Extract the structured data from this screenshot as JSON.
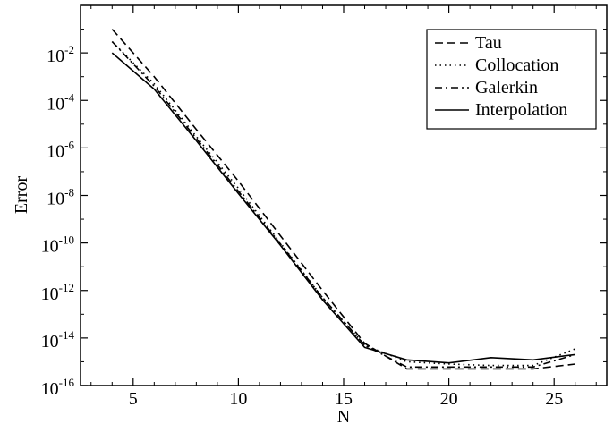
{
  "chart_data": {
    "type": "line",
    "xlabel": "N",
    "ylabel": "Error",
    "xlim": [
      2.5,
      27.5
    ],
    "ylim_log10": [
      -16,
      0
    ],
    "y_scale": "log",
    "grid": false,
    "legend_position": "top-right",
    "x_ticks": [
      5,
      10,
      15,
      20,
      25
    ],
    "x_tick_labels": [
      "5",
      "10",
      "15",
      "20",
      "25"
    ],
    "y_ticks": [
      {
        "base": "10",
        "exp": "-2",
        "value": 0.01
      },
      {
        "base": "10",
        "exp": "-4",
        "value": 0.0001
      },
      {
        "base": "10",
        "exp": "-6",
        "value": 1e-06
      },
      {
        "base": "10",
        "exp": "-8",
        "value": 1e-08
      },
      {
        "base": "10",
        "exp": "-10",
        "value": 1e-10
      },
      {
        "base": "10",
        "exp": "-12",
        "value": 1e-12
      },
      {
        "base": "10",
        "exp": "-14",
        "value": 1e-14
      },
      {
        "base": "10",
        "exp": "-16",
        "value": 1e-16
      }
    ],
    "x": [
      4,
      6,
      8,
      10,
      12,
      14,
      16,
      18,
      20,
      22,
      24,
      26
    ],
    "series": [
      {
        "name": "Tau",
        "style": "dashed",
        "values": [
          0.1,
          0.001,
          6e-06,
          4e-08,
          2e-10,
          1e-12,
          6e-15,
          5e-16,
          5e-16,
          5e-16,
          5e-16,
          8e-16
        ]
      },
      {
        "name": "Collocation",
        "style": "dotted",
        "values": [
          0.03,
          0.0005,
          3e-06,
          2e-08,
          1e-10,
          5e-13,
          5e-15,
          1e-15,
          8e-16,
          7e-16,
          7e-16,
          3.5e-15
        ]
      },
      {
        "name": "Galerkin",
        "style": "dashdot",
        "values": [
          0.03,
          0.0004,
          2.5e-06,
          1.5e-08,
          9e-11,
          5e-13,
          5e-15,
          6e-16,
          6e-16,
          6e-16,
          6e-16,
          2e-15
        ]
      },
      {
        "name": "Interpolation",
        "style": "solid",
        "values": [
          0.01,
          0.0003,
          2e-06,
          1.2e-08,
          8e-11,
          4e-13,
          4e-15,
          1.2e-15,
          9e-16,
          1.5e-15,
          1.2e-15,
          2e-15
        ]
      }
    ]
  }
}
